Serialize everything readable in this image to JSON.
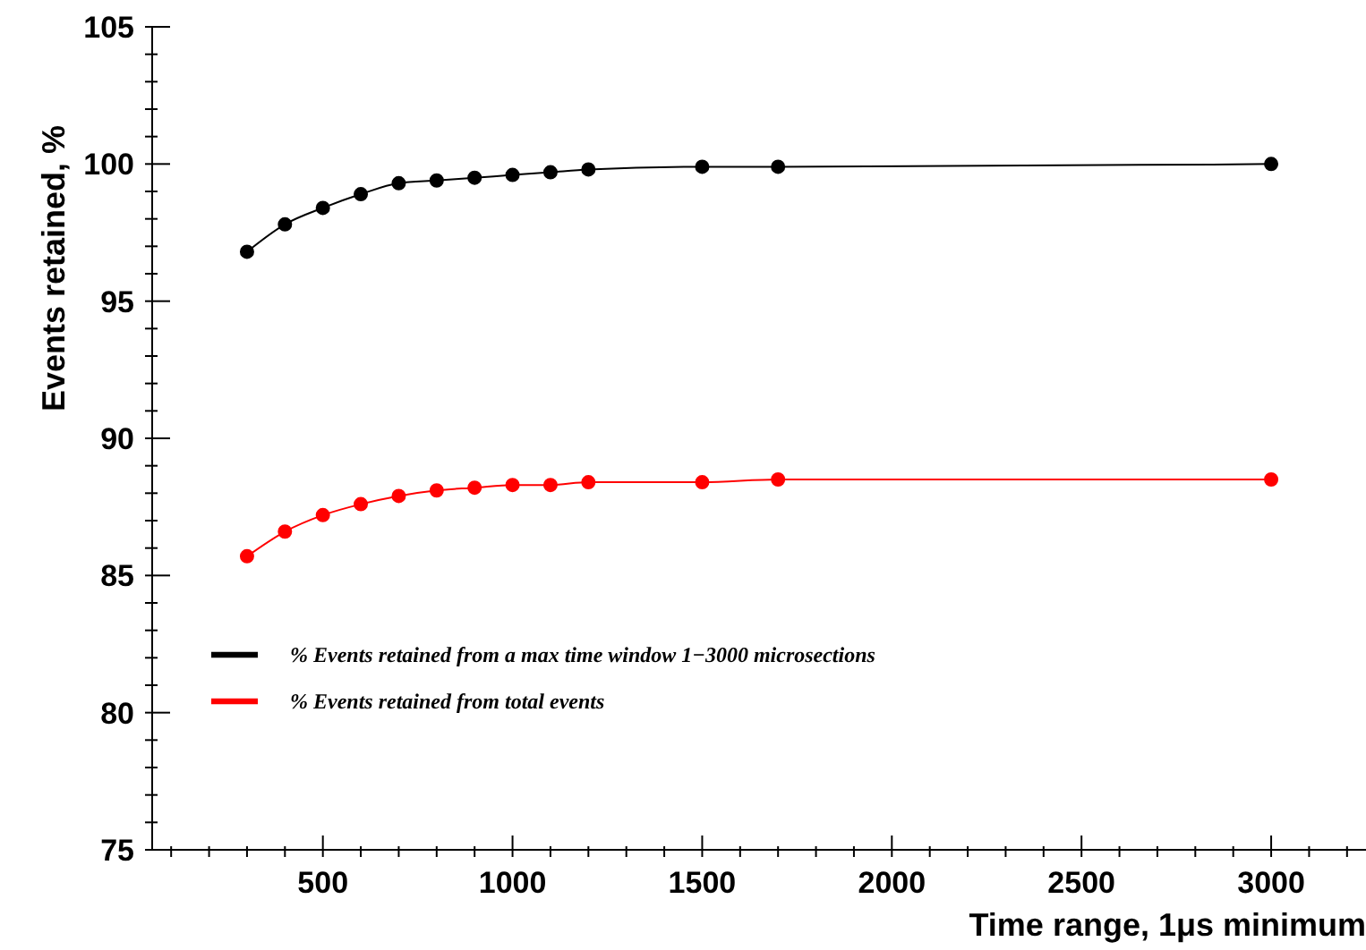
{
  "chart_data": {
    "type": "line",
    "xlabel": "Time range, 1μs minimum",
    "ylabel": "Events retained, %",
    "x": [
      300,
      400,
      500,
      600,
      700,
      800,
      900,
      1000,
      1100,
      1200,
      1500,
      1700,
      3000
    ],
    "series": [
      {
        "name": "% Events retained from a max time window 1−3000 microsections",
        "color": "#000000",
        "values": [
          96.8,
          97.8,
          98.4,
          98.9,
          99.3,
          99.4,
          99.5,
          99.6,
          99.7,
          99.8,
          99.9,
          99.9,
          100
        ]
      },
      {
        "name": "% Events retained from total events",
        "color": "#ff0000",
        "values": [
          85.7,
          86.6,
          87.2,
          87.6,
          87.9,
          88.1,
          88.2,
          88.3,
          88.3,
          88.4,
          88.4,
          88.5,
          88.5
        ]
      }
    ],
    "xlim": [
      50,
      3250
    ],
    "ylim": [
      75,
      105
    ],
    "xticks": [
      {
        "value": 100,
        "label": null
      },
      {
        "value": 200,
        "label": null
      },
      {
        "value": 300,
        "label": null
      },
      {
        "value": 400,
        "label": null
      },
      500,
      {
        "value": 600,
        "label": null
      },
      {
        "value": 700,
        "label": null
      },
      {
        "value": 800,
        "label": null
      },
      {
        "value": 900,
        "label": null
      },
      1000,
      {
        "value": 1100,
        "label": null
      },
      {
        "value": 1200,
        "label": null
      },
      {
        "value": 1300,
        "label": null
      },
      {
        "value": 1400,
        "label": null
      },
      1500,
      {
        "value": 1600,
        "label": null
      },
      {
        "value": 1700,
        "label": null
      },
      {
        "value": 1800,
        "label": null
      },
      {
        "value": 1900,
        "label": null
      },
      2000,
      {
        "value": 2100,
        "label": null
      },
      {
        "value": 2200,
        "label": null
      },
      {
        "value": 2300,
        "label": null
      },
      {
        "value": 2400,
        "label": null
      },
      2500,
      {
        "value": 2600,
        "label": null
      },
      {
        "value": 2700,
        "label": null
      },
      {
        "value": 2800,
        "label": null
      },
      {
        "value": 2900,
        "label": null
      },
      3000,
      {
        "value": 3100,
        "label": null
      },
      {
        "value": 3200,
        "label": null
      }
    ],
    "yticks": [
      75,
      {
        "value": 76,
        "label": null
      },
      {
        "value": 77,
        "label": null
      },
      {
        "value": 78,
        "label": null
      },
      {
        "value": 79,
        "label": null
      },
      80,
      {
        "value": 81,
        "label": null
      },
      {
        "value": 82,
        "label": null
      },
      {
        "value": 83,
        "label": null
      },
      {
        "value": 84,
        "label": null
      },
      85,
      {
        "value": 86,
        "label": null
      },
      {
        "value": 87,
        "label": null
      },
      {
        "value": 88,
        "label": null
      },
      {
        "value": 89,
        "label": null
      },
      90,
      {
        "value": 91,
        "label": null
      },
      {
        "value": 92,
        "label": null
      },
      {
        "value": 93,
        "label": null
      },
      {
        "value": 94,
        "label": null
      },
      95,
      {
        "value": 96,
        "label": null
      },
      {
        "value": 97,
        "label": null
      },
      {
        "value": 98,
        "label": null
      },
      {
        "value": 99,
        "label": null
      },
      100,
      {
        "value": 101,
        "label": null
      },
      {
        "value": 102,
        "label": null
      },
      {
        "value": 103,
        "label": null
      },
      {
        "value": 104,
        "label": null
      },
      105
    ],
    "grid": false,
    "legend": "left",
    "marker": "circle",
    "line_style": "solid"
  }
}
